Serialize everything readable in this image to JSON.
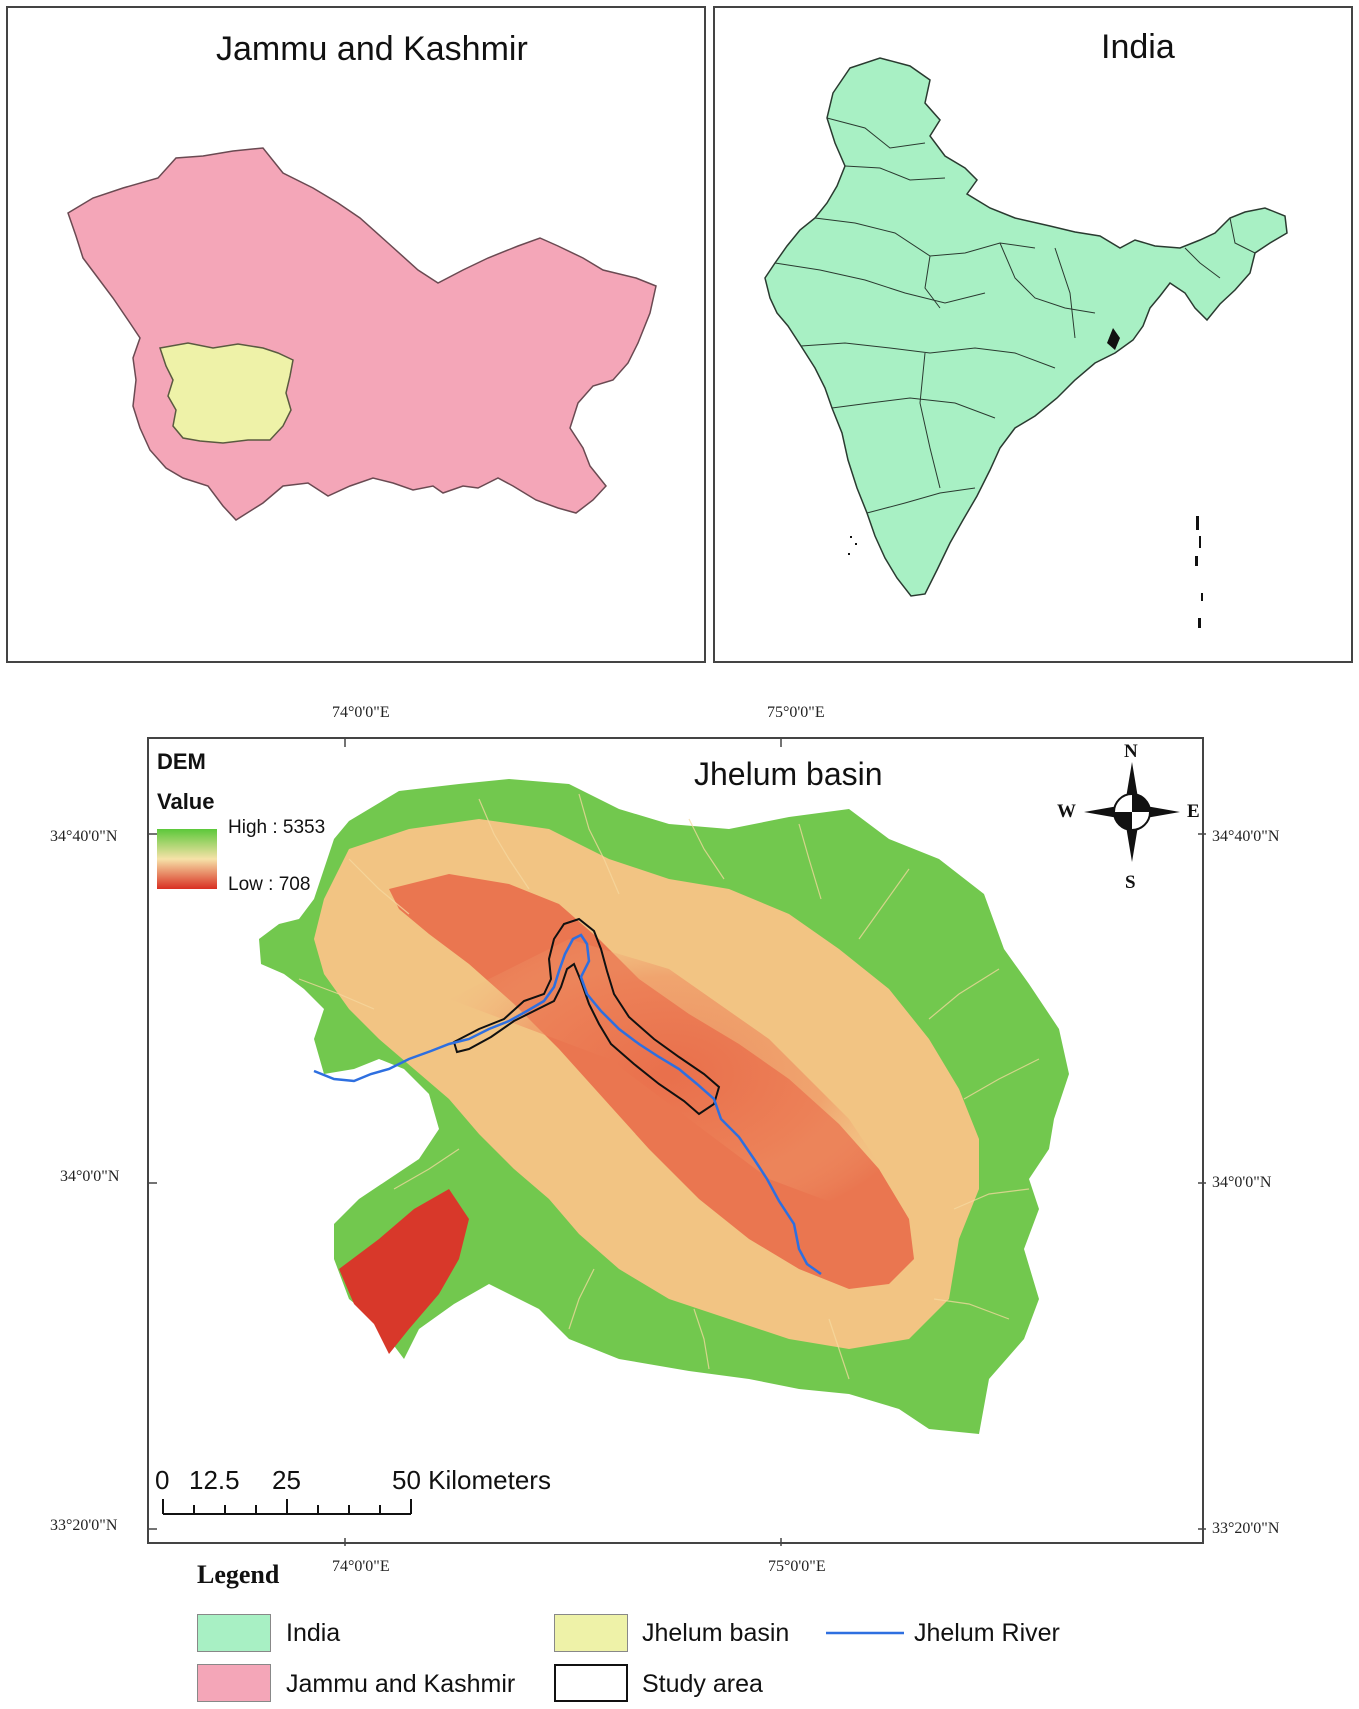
{
  "panels": {
    "jk": {
      "title": "Jammu and Kashmir"
    },
    "india": {
      "title": "India"
    },
    "basin": {
      "title": "Jhelum basin"
    }
  },
  "coordinates": {
    "top": [
      "74°0'0\"E",
      "75°0'0\"E"
    ],
    "bottom": [
      "74°0'0\"E",
      "75°0'0\"E"
    ],
    "left": [
      "34°40'0\"N",
      "34°0'0\"N",
      "33°20'0\"N"
    ],
    "right": [
      "34°40'0\"N",
      "34°0'0\"N",
      "33°20'0\"N"
    ]
  },
  "dem_legend": {
    "title": "DEM",
    "subtitle": "Value",
    "high": "High : 5353",
    "low": "Low : 708",
    "high_color": "#5cc83a",
    "low_color": "#d92f22"
  },
  "compass": {
    "n": "N",
    "s": "S",
    "e": "E",
    "w": "W"
  },
  "scale_bar": {
    "labels": [
      "0",
      "12.5",
      "25",
      "50 Kilometers"
    ]
  },
  "legend": {
    "title": "Legend",
    "items": [
      {
        "label": "India",
        "color": "#a8f0c4"
      },
      {
        "label": "Jammu and Kashmir",
        "color": "#f4a6b8"
      },
      {
        "label": "Jhelum basin",
        "color": "#eef2a8"
      },
      {
        "label": "Study area",
        "color": "#ffffff"
      },
      {
        "label": "Jhelum River",
        "color": "#2e6fe0"
      }
    ]
  }
}
